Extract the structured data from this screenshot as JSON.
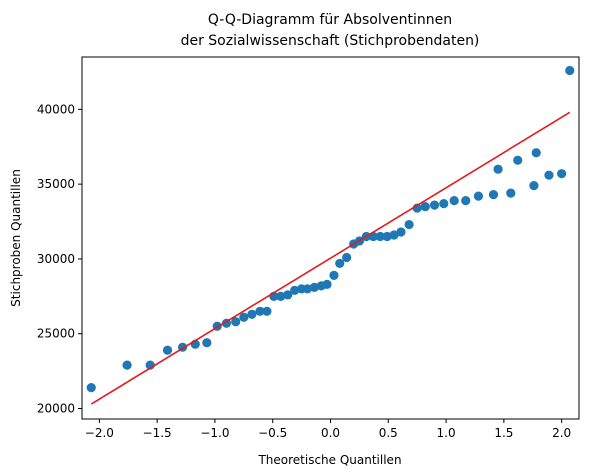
{
  "chart_data": {
    "type": "scatter",
    "title_line1": "Q-Q-Diagramm für Absolventinnen",
    "title_line2": "der Sozialwissenschaft (Stichprobendaten)",
    "xlabel": "Theoretische Quantillen",
    "ylabel": "Stichproben Quantillen",
    "xlim": [
      -2.15,
      2.15
    ],
    "ylim": [
      19300,
      43500
    ],
    "x_ticks": [
      {
        "value": -2.0,
        "label": "−2.0"
      },
      {
        "value": -1.5,
        "label": "−1.5"
      },
      {
        "value": -1.0,
        "label": "−1.0"
      },
      {
        "value": -0.5,
        "label": "−0.5"
      },
      {
        "value": 0.0,
        "label": "0.0"
      },
      {
        "value": 0.5,
        "label": "0.5"
      },
      {
        "value": 1.0,
        "label": "1.0"
      },
      {
        "value": 1.5,
        "label": "1.5"
      },
      {
        "value": 2.0,
        "label": "2.0"
      }
    ],
    "y_ticks": [
      {
        "value": 20000,
        "label": "20000"
      },
      {
        "value": 25000,
        "label": "25000"
      },
      {
        "value": 30000,
        "label": "30000"
      },
      {
        "value": 35000,
        "label": "35000"
      },
      {
        "value": 40000,
        "label": "40000"
      }
    ],
    "point_color": "#1f77b4",
    "line_color": "#e41a1c",
    "reference_line": {
      "x": [
        -2.07,
        2.07
      ],
      "y": [
        20300,
        39800
      ]
    },
    "points": [
      {
        "x": -2.07,
        "y": 21400
      },
      {
        "x": -1.76,
        "y": 22900
      },
      {
        "x": -1.56,
        "y": 22900
      },
      {
        "x": -1.41,
        "y": 23900
      },
      {
        "x": -1.28,
        "y": 24100
      },
      {
        "x": -1.17,
        "y": 24300
      },
      {
        "x": -1.07,
        "y": 24400
      },
      {
        "x": -0.98,
        "y": 25500
      },
      {
        "x": -0.9,
        "y": 25700
      },
      {
        "x": -0.82,
        "y": 25800
      },
      {
        "x": -0.75,
        "y": 26100
      },
      {
        "x": -0.68,
        "y": 26300
      },
      {
        "x": -0.61,
        "y": 26500
      },
      {
        "x": -0.55,
        "y": 26500
      },
      {
        "x": -0.49,
        "y": 27500
      },
      {
        "x": -0.43,
        "y": 27500
      },
      {
        "x": -0.37,
        "y": 27600
      },
      {
        "x": -0.31,
        "y": 27900
      },
      {
        "x": -0.25,
        "y": 28000
      },
      {
        "x": -0.2,
        "y": 28000
      },
      {
        "x": -0.14,
        "y": 28100
      },
      {
        "x": -0.08,
        "y": 28200
      },
      {
        "x": -0.03,
        "y": 28300
      },
      {
        "x": 0.03,
        "y": 28900
      },
      {
        "x": 0.08,
        "y": 29700
      },
      {
        "x": 0.14,
        "y": 30100
      },
      {
        "x": 0.2,
        "y": 31000
      },
      {
        "x": 0.25,
        "y": 31200
      },
      {
        "x": 0.31,
        "y": 31500
      },
      {
        "x": 0.37,
        "y": 31500
      },
      {
        "x": 0.43,
        "y": 31500
      },
      {
        "x": 0.49,
        "y": 31500
      },
      {
        "x": 0.55,
        "y": 31600
      },
      {
        "x": 0.61,
        "y": 31800
      },
      {
        "x": 0.68,
        "y": 32300
      },
      {
        "x": 0.75,
        "y": 33400
      },
      {
        "x": 0.82,
        "y": 33500
      },
      {
        "x": 0.9,
        "y": 33600
      },
      {
        "x": 0.98,
        "y": 33700
      },
      {
        "x": 1.07,
        "y": 33900
      },
      {
        "x": 1.17,
        "y": 33900
      },
      {
        "x": 1.28,
        "y": 34200
      },
      {
        "x": 1.41,
        "y": 34300
      },
      {
        "x": 1.56,
        "y": 34400
      },
      {
        "x": 1.76,
        "y": 34900
      },
      {
        "x": 1.89,
        "y": 35600
      },
      {
        "x": 2.0,
        "y": 35700
      },
      {
        "x": 1.45,
        "y": 36000
      },
      {
        "x": 1.62,
        "y": 36600
      },
      {
        "x": 1.78,
        "y": 37100
      },
      {
        "x": 2.07,
        "y": 42600
      }
    ]
  }
}
